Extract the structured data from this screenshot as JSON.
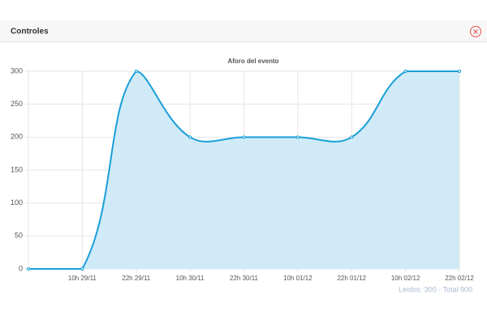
{
  "header": {
    "title": "Controles"
  },
  "chart_data": {
    "type": "line",
    "title": "Aforo del evento",
    "categories": [
      null,
      "10h 29/11",
      "22h 29/11",
      "10h 30/11",
      "22h 30/11",
      "10h 01/12",
      "22h 01/12",
      "10h 02/12",
      "22h 02/12"
    ],
    "values": [
      0,
      0,
      300,
      200,
      200,
      200,
      200,
      300,
      300
    ],
    "color": "#1a9fd8",
    "fill": "#d0ebf7",
    "ylim": [
      0,
      300
    ],
    "yticks": [
      0,
      50,
      100,
      150,
      200,
      250,
      300
    ],
    "grid": true
  },
  "footer": {
    "text": "Leidos: 300 - Total 900"
  }
}
